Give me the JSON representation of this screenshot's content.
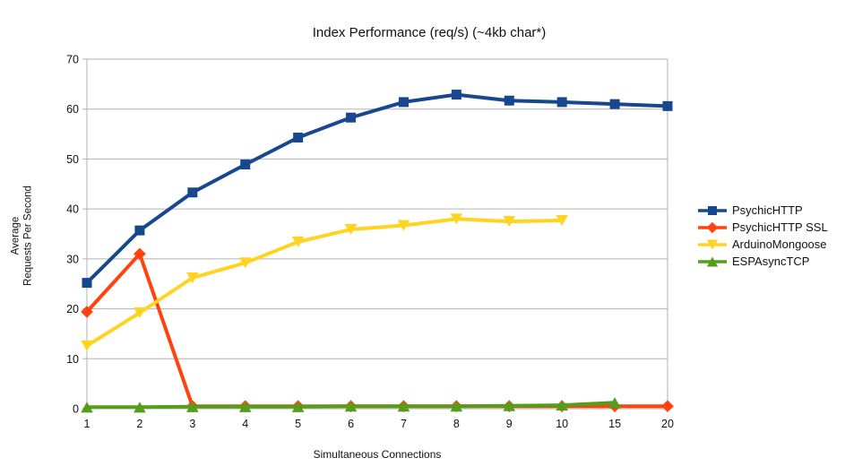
{
  "chart_data": {
    "type": "line",
    "title": "Index Performance (req/s) (~4kb char*)",
    "xlabel": "Simultaneous Connections",
    "ylabel": "Average\nRequests Per Second",
    "categories": [
      "1",
      "2",
      "3",
      "4",
      "5",
      "6",
      "7",
      "8",
      "9",
      "10",
      "15",
      "20"
    ],
    "ylim": [
      0,
      70
    ],
    "yticks": [
      0,
      10,
      20,
      30,
      40,
      50,
      60,
      70
    ],
    "grid": true,
    "legend_position": "right",
    "colors": {
      "grid": "#b2b2b2",
      "axis": "#b2b2b2",
      "text": "#111111"
    },
    "series": [
      {
        "name": "PsychicHTTP",
        "color": "#17478f",
        "marker": "square",
        "values": [
          25.2,
          35.7,
          43.3,
          48.9,
          54.3,
          58.3,
          61.4,
          62.9,
          61.7,
          61.4,
          61.0,
          60.6
        ]
      },
      {
        "name": "PsychicHTTP SSL",
        "color": "#ff420e",
        "marker": "diamond",
        "values": [
          19.4,
          31.0,
          0.5,
          0.5,
          0.5,
          0.5,
          0.5,
          0.5,
          0.5,
          0.5,
          0.5,
          0.5
        ]
      },
      {
        "name": "ArduinoMongoose",
        "color": "#ffd320",
        "marker": "triangle-down",
        "values": [
          12.6,
          19.2,
          26.2,
          29.2,
          33.4,
          35.9,
          36.7,
          38.0,
          37.5,
          37.7,
          null,
          null
        ]
      },
      {
        "name": "ESPAsyncTCP",
        "color": "#579d1c",
        "marker": "triangle-up",
        "values": [
          0.3,
          0.3,
          0.4,
          0.4,
          0.4,
          0.5,
          0.5,
          0.5,
          0.6,
          0.7,
          1.2,
          null
        ]
      }
    ]
  }
}
